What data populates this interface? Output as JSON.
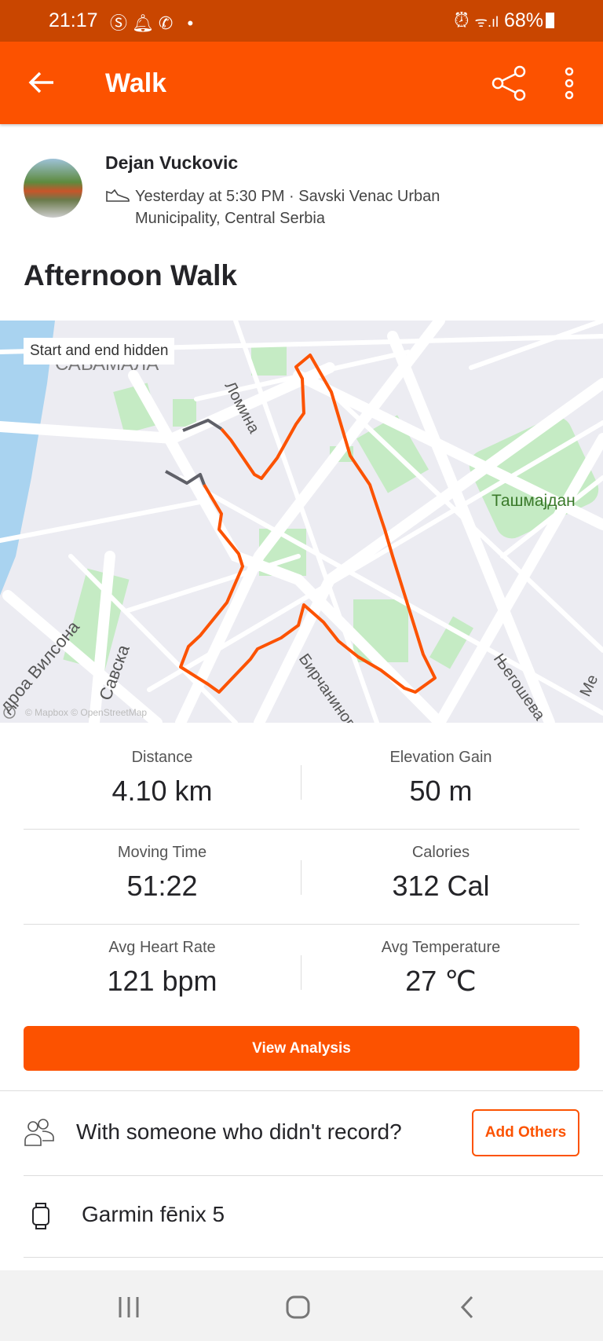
{
  "status_bar": {
    "time": "21:17",
    "battery": "68%",
    "icons": [
      "skype-icon",
      "bell-icon",
      "viber-icon",
      "dot-icon",
      "alarm-icon",
      "wifi-icon",
      "signal-icon",
      "battery-icon"
    ]
  },
  "app_bar": {
    "title": "Walk",
    "back_icon": "arrow-left-icon",
    "share_icon": "share-icon",
    "more_icon": "more-vertical-icon"
  },
  "activity": {
    "athlete": "Dejan Vuckovic",
    "meta": "Yesterday at 5:30 PM · Savski Venac Urban Municipality, Central Serbia",
    "sport_icon": "shoe-icon",
    "title": "Afternoon Walk"
  },
  "map": {
    "badge": "Start and end hidden",
    "labels": [
      "САВАМАЛА",
      "Ломина",
      "Ташмајдан",
      "Савска",
      "дроа Вилсона",
      "Бирчанинова",
      "Његошева",
      "Ме"
    ],
    "attribution": "© Mapbox © OpenStreetMap",
    "route_color": "#fc5200",
    "hidden_color": "#5f6068"
  },
  "stats": [
    {
      "label": "Distance",
      "value": "4.10 km"
    },
    {
      "label": "Elevation Gain",
      "value": "50 m"
    },
    {
      "label": "Moving Time",
      "value": "51:22"
    },
    {
      "label": "Calories",
      "value": "312 Cal"
    },
    {
      "label": "Avg Heart Rate",
      "value": "121 bpm"
    },
    {
      "label": "Avg Temperature",
      "value": "27 ℃"
    }
  ],
  "view_analysis": "View Analysis",
  "with_others": {
    "text": "With someone who didn't record?",
    "button": "Add Others"
  },
  "device": {
    "name": "Garmin fēnix 5"
  },
  "colors": {
    "brand": "#fc5200",
    "status_bar": "#c94600"
  }
}
